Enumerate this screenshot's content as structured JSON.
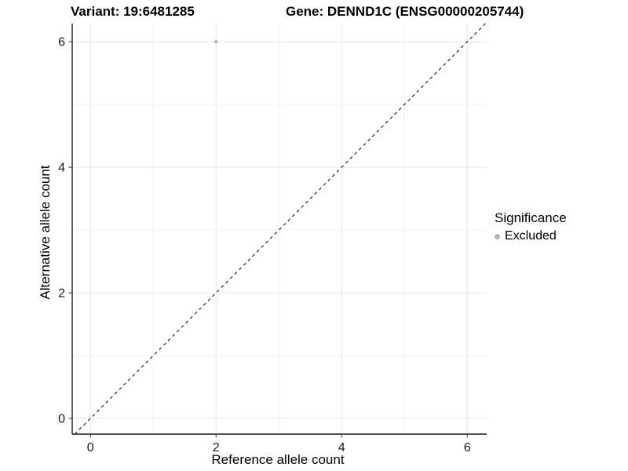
{
  "figure": {
    "title_left": "Variant: 19:6481285",
    "title_right": "Gene: DENND1C (ENSG00000205744)"
  },
  "chart_data": {
    "type": "scatter",
    "title": "Variant: 19:6481285    Gene: DENND1C (ENSG00000205744)",
    "xlabel": "Reference allele count",
    "ylabel": "Alternative allele count",
    "xlim": [
      -0.29,
      6.31
    ],
    "ylim": [
      -0.25,
      6.29
    ],
    "x_ticks": [
      0,
      2,
      4,
      6
    ],
    "y_ticks": [
      0,
      2,
      4,
      6
    ],
    "x_minor_ticks": [
      1,
      3,
      5
    ],
    "y_minor_ticks": [
      1,
      3,
      5
    ],
    "grid": "major and minor gridlines, white background",
    "points": [
      {
        "x": 2,
        "y": 6,
        "series": "Excluded"
      }
    ],
    "reference_line": {
      "type": "identity",
      "slope": 1,
      "intercept": 0,
      "style": "dashed",
      "color": "#000000"
    },
    "legend": {
      "title": "Significance",
      "position": "right",
      "items": [
        {
          "label": "Excluded",
          "color": "#b4b4b4"
        }
      ]
    },
    "colors": {
      "point": "#b4b4b4",
      "grid_major": "#e6e6e6",
      "grid_minor": "#f2f2f2",
      "axis_line": "#1a1a1a",
      "tick_mark": "#333333",
      "tick_label": "#1a1a1a",
      "text": "#000000",
      "background": "#ffffff"
    }
  }
}
